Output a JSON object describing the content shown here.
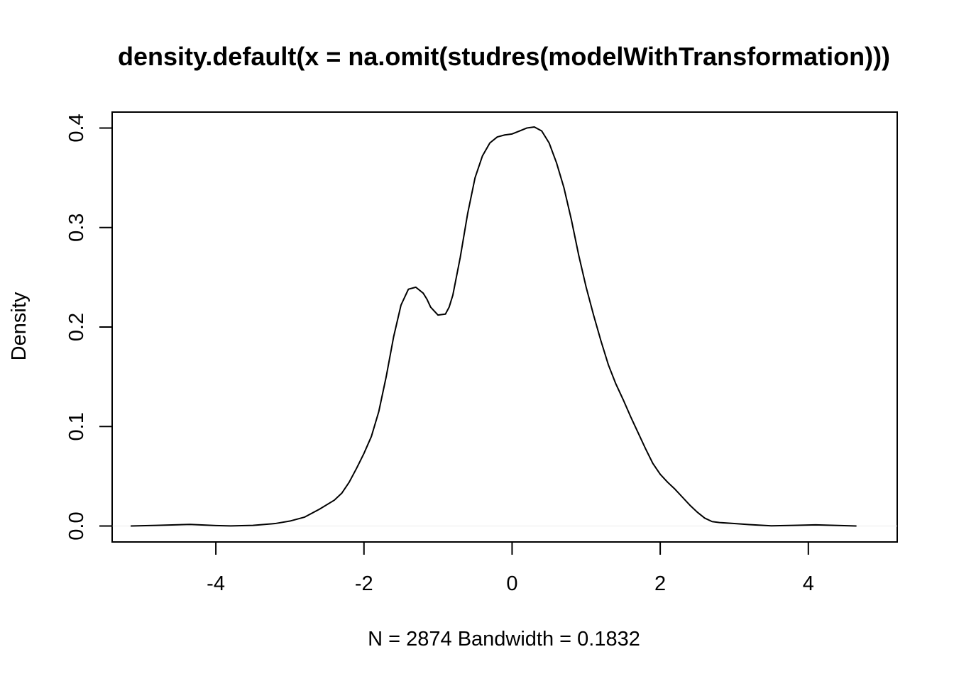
{
  "chart_data": {
    "type": "line",
    "title": "density.default(x = na.omit(studres(modelWithTransformation)))",
    "xlabel": "N = 2874   Bandwidth = 0.1832",
    "ylabel": "Density",
    "xlim": [
      -5.4,
      5.2
    ],
    "ylim": [
      -0.016,
      0.416
    ],
    "x_ticks": [
      -4,
      -2,
      0,
      2,
      4
    ],
    "x_tick_labels": [
      "-4",
      "-2",
      "0",
      "2",
      "4"
    ],
    "y_ticks": [
      0.0,
      0.1,
      0.2,
      0.3,
      0.4
    ],
    "y_tick_labels": [
      "0.0",
      "0.1",
      "0.2",
      "0.3",
      "0.4"
    ],
    "grid": false,
    "zero_line": true,
    "series": [
      {
        "x": [
          -5.15,
          -4.8,
          -4.35,
          -4.0,
          -3.8,
          -3.5,
          -3.2,
          -3.0,
          -2.8,
          -2.6,
          -2.4,
          -2.3,
          -2.2,
          -2.1,
          -2.0,
          -1.9,
          -1.8,
          -1.7,
          -1.6,
          -1.5,
          -1.4,
          -1.3,
          -1.2,
          -1.15,
          -1.1,
          -1.0,
          -0.9,
          -0.85,
          -0.8,
          -0.7,
          -0.6,
          -0.5,
          -0.4,
          -0.3,
          -0.2,
          -0.1,
          0.0,
          0.1,
          0.2,
          0.3,
          0.4,
          0.5,
          0.6,
          0.7,
          0.8,
          0.9,
          1.0,
          1.1,
          1.2,
          1.3,
          1.4,
          1.5,
          1.6,
          1.7,
          1.8,
          1.9,
          2.0,
          2.1,
          2.2,
          2.3,
          2.4,
          2.5,
          2.6,
          2.7,
          2.8,
          3.0,
          3.2,
          3.5,
          3.8,
          4.1,
          4.4,
          4.65
        ],
        "y": [
          0.0,
          0.0007,
          0.0016,
          0.0005,
          0.0001,
          0.0007,
          0.0025,
          0.005,
          0.009,
          0.017,
          0.026,
          0.033,
          0.044,
          0.058,
          0.073,
          0.09,
          0.115,
          0.15,
          0.19,
          0.222,
          0.238,
          0.24,
          0.234,
          0.228,
          0.22,
          0.212,
          0.213,
          0.22,
          0.232,
          0.27,
          0.314,
          0.35,
          0.372,
          0.385,
          0.391,
          0.393,
          0.394,
          0.397,
          0.4,
          0.401,
          0.397,
          0.385,
          0.365,
          0.34,
          0.308,
          0.272,
          0.24,
          0.212,
          0.186,
          0.162,
          0.143,
          0.127,
          0.11,
          0.094,
          0.078,
          0.063,
          0.052,
          0.044,
          0.037,
          0.029,
          0.021,
          0.014,
          0.008,
          0.0045,
          0.0035,
          0.0025,
          0.0015,
          0.0002,
          0.0007,
          0.0012,
          0.0006,
          0.0
        ]
      }
    ]
  }
}
